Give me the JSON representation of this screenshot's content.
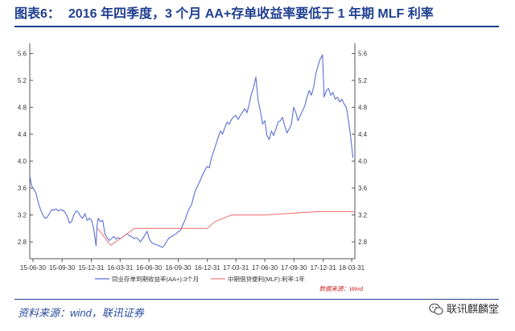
{
  "header": {
    "figure_label": "图表6：",
    "title": "2016 年四季度，3 个月 AA+存单收益率要低于 1 年期 MLF 利率"
  },
  "footer": {
    "source": "资料来源：wind，联讯证券",
    "watermark": "联讯麒麟堂",
    "watermark_icon": "wechat-icon"
  },
  "colors": {
    "title": "#1f3f8f",
    "series_cd": "#5b6fd6",
    "series_mlf": "#ef7a7a",
    "inner_source": "#cc2222"
  },
  "chart_data": {
    "type": "line",
    "title": "",
    "xlabel": "",
    "ylabel": "",
    "inner_source_note": "数据来源：Wind",
    "x_ticks": [
      "15-06-30",
      "15-09-30",
      "15-12-31",
      "16-03-31",
      "16-06-30",
      "16-09-30",
      "16-12-31",
      "17-03-31",
      "17-06-30",
      "17-09-30",
      "17-12-31",
      "18-03-31"
    ],
    "xlim": [
      "2015-06-20",
      "2018-04-10"
    ],
    "ylim": [
      2.55,
      5.75
    ],
    "y_ticks": [
      2.8,
      3.2,
      3.6,
      4.0,
      4.4,
      4.8,
      5.2,
      5.6
    ],
    "y_tick_labels": [
      "2.8",
      "3.2",
      "3.6",
      "4.0",
      "4.4",
      "4.8",
      "5.2",
      "5.6"
    ],
    "grid": false,
    "legend_position": "bottom",
    "series": [
      {
        "name": "同业存单到期收益率(AA+):3个月",
        "color": "#5b6fd6",
        "points": [
          [
            "2015-06-20",
            3.78
          ],
          [
            "2015-06-26",
            3.63
          ],
          [
            "2015-07-03",
            3.58
          ],
          [
            "2015-07-10",
            3.52
          ],
          [
            "2015-07-17",
            3.38
          ],
          [
            "2015-07-24",
            3.28
          ],
          [
            "2015-07-31",
            3.2
          ],
          [
            "2015-08-07",
            3.15
          ],
          [
            "2015-08-14",
            3.17
          ],
          [
            "2015-08-21",
            3.22
          ],
          [
            "2015-08-28",
            3.28
          ],
          [
            "2015-09-04",
            3.27
          ],
          [
            "2015-09-11",
            3.29
          ],
          [
            "2015-09-18",
            3.26
          ],
          [
            "2015-09-25",
            3.28
          ],
          [
            "2015-10-02",
            3.27
          ],
          [
            "2015-10-09",
            3.24
          ],
          [
            "2015-10-16",
            3.18
          ],
          [
            "2015-10-23",
            3.08
          ],
          [
            "2015-10-30",
            3.1
          ],
          [
            "2015-11-06",
            3.2
          ],
          [
            "2015-11-13",
            3.26
          ],
          [
            "2015-11-20",
            3.24
          ],
          [
            "2015-11-27",
            3.18
          ],
          [
            "2015-12-04",
            3.15
          ],
          [
            "2015-12-11",
            3.22
          ],
          [
            "2015-12-18",
            3.12
          ],
          [
            "2015-12-25",
            3.15
          ],
          [
            "2016-01-01",
            3.12
          ],
          [
            "2016-01-08",
            2.98
          ],
          [
            "2016-01-15",
            2.74
          ],
          [
            "2016-01-18",
            3.05
          ],
          [
            "2016-01-22",
            3.15
          ],
          [
            "2016-01-29",
            3.1
          ],
          [
            "2016-02-05",
            3.12
          ],
          [
            "2016-02-12",
            2.92
          ],
          [
            "2016-02-19",
            2.86
          ],
          [
            "2016-02-26",
            2.82
          ],
          [
            "2016-03-04",
            2.85
          ],
          [
            "2016-03-11",
            2.88
          ],
          [
            "2016-03-18",
            2.84
          ],
          [
            "2016-03-25",
            2.86
          ],
          [
            "2016-04-01",
            2.85
          ],
          [
            "2016-04-08",
            2.87
          ],
          [
            "2016-04-15",
            2.9
          ],
          [
            "2016-04-22",
            2.92
          ],
          [
            "2016-04-29",
            2.89
          ],
          [
            "2016-05-06",
            2.88
          ],
          [
            "2016-05-13",
            2.85
          ],
          [
            "2016-05-20",
            2.86
          ],
          [
            "2016-05-27",
            2.84
          ],
          [
            "2016-06-03",
            2.8
          ],
          [
            "2016-06-10",
            2.85
          ],
          [
            "2016-06-17",
            2.9
          ],
          [
            "2016-06-24",
            2.96
          ],
          [
            "2016-07-01",
            2.84
          ],
          [
            "2016-07-08",
            2.79
          ],
          [
            "2016-07-15",
            2.77
          ],
          [
            "2016-07-22",
            2.76
          ],
          [
            "2016-07-29",
            2.75
          ],
          [
            "2016-08-05",
            2.73
          ],
          [
            "2016-08-12",
            2.72
          ],
          [
            "2016-08-19",
            2.76
          ],
          [
            "2016-08-26",
            2.82
          ],
          [
            "2016-09-02",
            2.86
          ],
          [
            "2016-09-09",
            2.88
          ],
          [
            "2016-09-16",
            2.9
          ],
          [
            "2016-09-23",
            2.92
          ],
          [
            "2016-09-30",
            2.95
          ],
          [
            "2016-10-07",
            2.97
          ],
          [
            "2016-10-14",
            3.05
          ],
          [
            "2016-10-21",
            3.12
          ],
          [
            "2016-10-28",
            3.22
          ],
          [
            "2016-11-04",
            3.3
          ],
          [
            "2016-11-11",
            3.35
          ],
          [
            "2016-11-18",
            3.48
          ],
          [
            "2016-11-25",
            3.58
          ],
          [
            "2016-12-02",
            3.65
          ],
          [
            "2016-12-09",
            3.72
          ],
          [
            "2016-12-16",
            3.8
          ],
          [
            "2016-12-23",
            3.86
          ],
          [
            "2016-12-30",
            3.92
          ],
          [
            "2017-01-06",
            3.9
          ],
          [
            "2017-01-13",
            4.05
          ],
          [
            "2017-01-20",
            4.15
          ],
          [
            "2017-01-27",
            4.25
          ],
          [
            "2017-02-03",
            4.35
          ],
          [
            "2017-02-10",
            4.45
          ],
          [
            "2017-02-17",
            4.4
          ],
          [
            "2017-02-24",
            4.5
          ],
          [
            "2017-03-03",
            4.58
          ],
          [
            "2017-03-10",
            4.55
          ],
          [
            "2017-03-17",
            4.62
          ],
          [
            "2017-03-24",
            4.66
          ],
          [
            "2017-03-31",
            4.68
          ],
          [
            "2017-04-07",
            4.62
          ],
          [
            "2017-04-14",
            4.68
          ],
          [
            "2017-04-21",
            4.73
          ],
          [
            "2017-04-28",
            4.78
          ],
          [
            "2017-05-05",
            4.72
          ],
          [
            "2017-05-12",
            4.85
          ],
          [
            "2017-05-19",
            5.0
          ],
          [
            "2017-05-26",
            5.1
          ],
          [
            "2017-06-02",
            5.25
          ],
          [
            "2017-06-09",
            4.9
          ],
          [
            "2017-06-16",
            4.75
          ],
          [
            "2017-06-23",
            4.55
          ],
          [
            "2017-06-30",
            4.6
          ],
          [
            "2017-07-07",
            4.38
          ],
          [
            "2017-07-14",
            4.32
          ],
          [
            "2017-07-21",
            4.45
          ],
          [
            "2017-07-28",
            4.38
          ],
          [
            "2017-08-04",
            4.48
          ],
          [
            "2017-08-11",
            4.58
          ],
          [
            "2017-08-18",
            4.6
          ],
          [
            "2017-08-25",
            4.65
          ],
          [
            "2017-09-01",
            4.52
          ],
          [
            "2017-09-08",
            4.42
          ],
          [
            "2017-09-15",
            4.48
          ],
          [
            "2017-09-22",
            4.55
          ],
          [
            "2017-09-29",
            4.8
          ],
          [
            "2017-10-06",
            4.72
          ],
          [
            "2017-10-13",
            4.6
          ],
          [
            "2017-10-20",
            4.68
          ],
          [
            "2017-10-27",
            4.75
          ],
          [
            "2017-11-03",
            4.82
          ],
          [
            "2017-11-10",
            4.95
          ],
          [
            "2017-11-17",
            5.05
          ],
          [
            "2017-11-24",
            4.98
          ],
          [
            "2017-12-01",
            5.1
          ],
          [
            "2017-12-08",
            5.3
          ],
          [
            "2017-12-15",
            5.42
          ],
          [
            "2017-12-22",
            5.52
          ],
          [
            "2017-12-29",
            5.58
          ],
          [
            "2018-01-03",
            4.95
          ],
          [
            "2018-01-10",
            5.05
          ],
          [
            "2018-01-17",
            5.08
          ],
          [
            "2018-01-24",
            4.98
          ],
          [
            "2018-01-31",
            5.02
          ],
          [
            "2018-02-07",
            4.92
          ],
          [
            "2018-02-14",
            4.95
          ],
          [
            "2018-02-21",
            4.88
          ],
          [
            "2018-02-28",
            4.92
          ],
          [
            "2018-03-07",
            4.85
          ],
          [
            "2018-03-14",
            4.8
          ],
          [
            "2018-03-21",
            4.6
          ],
          [
            "2018-03-28",
            4.35
          ],
          [
            "2018-04-04",
            4.05
          ]
        ]
      },
      {
        "name": "中期借贷便利(MLF):利率:1年",
        "color": "#ef7a7a",
        "points": [
          [
            "2016-01-20",
            3.0
          ],
          [
            "2016-03-01",
            2.75
          ],
          [
            "2016-04-01",
            2.85
          ],
          [
            "2016-05-15",
            3.0
          ],
          [
            "2016-12-31",
            3.0
          ],
          [
            "2017-01-24",
            3.1
          ],
          [
            "2017-03-16",
            3.2
          ],
          [
            "2017-06-01",
            3.2
          ],
          [
            "2017-06-30",
            3.2
          ],
          [
            "2017-12-14",
            3.25
          ],
          [
            "2018-04-10",
            3.25
          ]
        ]
      }
    ]
  }
}
